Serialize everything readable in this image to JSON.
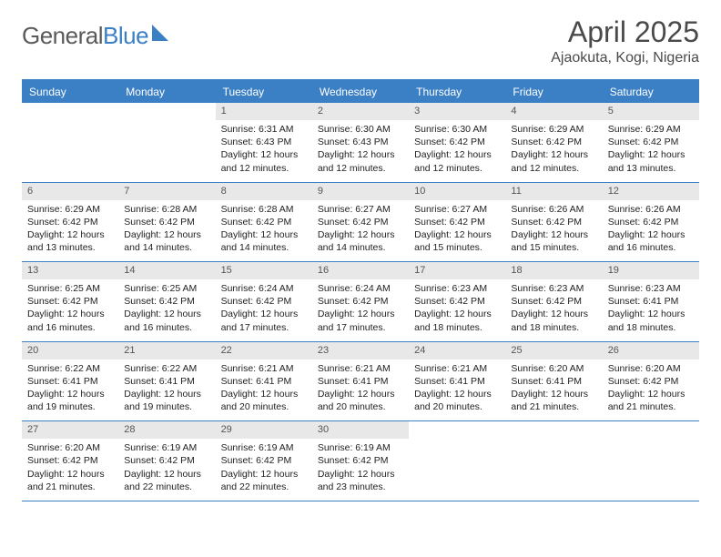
{
  "logo": {
    "word1": "General",
    "word2": "Blue"
  },
  "title": "April 2025",
  "location": "Ajaokuta, Kogi, Nigeria",
  "dow": [
    "Sunday",
    "Monday",
    "Tuesday",
    "Wednesday",
    "Thursday",
    "Friday",
    "Saturday"
  ],
  "colors": {
    "accent": "#3b7fc4",
    "daynum_bg": "#e8e8e8",
    "text": "#222222",
    "header_text": "#4a4a4a",
    "logo_gray": "#5a5a5a"
  },
  "weeks": [
    [
      null,
      null,
      {
        "n": "1",
        "sunrise": "Sunrise: 6:31 AM",
        "sunset": "Sunset: 6:43 PM",
        "daylight": "Daylight: 12 hours and 12 minutes."
      },
      {
        "n": "2",
        "sunrise": "Sunrise: 6:30 AM",
        "sunset": "Sunset: 6:43 PM",
        "daylight": "Daylight: 12 hours and 12 minutes."
      },
      {
        "n": "3",
        "sunrise": "Sunrise: 6:30 AM",
        "sunset": "Sunset: 6:42 PM",
        "daylight": "Daylight: 12 hours and 12 minutes."
      },
      {
        "n": "4",
        "sunrise": "Sunrise: 6:29 AM",
        "sunset": "Sunset: 6:42 PM",
        "daylight": "Daylight: 12 hours and 12 minutes."
      },
      {
        "n": "5",
        "sunrise": "Sunrise: 6:29 AM",
        "sunset": "Sunset: 6:42 PM",
        "daylight": "Daylight: 12 hours and 13 minutes."
      }
    ],
    [
      {
        "n": "6",
        "sunrise": "Sunrise: 6:29 AM",
        "sunset": "Sunset: 6:42 PM",
        "daylight": "Daylight: 12 hours and 13 minutes."
      },
      {
        "n": "7",
        "sunrise": "Sunrise: 6:28 AM",
        "sunset": "Sunset: 6:42 PM",
        "daylight": "Daylight: 12 hours and 14 minutes."
      },
      {
        "n": "8",
        "sunrise": "Sunrise: 6:28 AM",
        "sunset": "Sunset: 6:42 PM",
        "daylight": "Daylight: 12 hours and 14 minutes."
      },
      {
        "n": "9",
        "sunrise": "Sunrise: 6:27 AM",
        "sunset": "Sunset: 6:42 PM",
        "daylight": "Daylight: 12 hours and 14 minutes."
      },
      {
        "n": "10",
        "sunrise": "Sunrise: 6:27 AM",
        "sunset": "Sunset: 6:42 PM",
        "daylight": "Daylight: 12 hours and 15 minutes."
      },
      {
        "n": "11",
        "sunrise": "Sunrise: 6:26 AM",
        "sunset": "Sunset: 6:42 PM",
        "daylight": "Daylight: 12 hours and 15 minutes."
      },
      {
        "n": "12",
        "sunrise": "Sunrise: 6:26 AM",
        "sunset": "Sunset: 6:42 PM",
        "daylight": "Daylight: 12 hours and 16 minutes."
      }
    ],
    [
      {
        "n": "13",
        "sunrise": "Sunrise: 6:25 AM",
        "sunset": "Sunset: 6:42 PM",
        "daylight": "Daylight: 12 hours and 16 minutes."
      },
      {
        "n": "14",
        "sunrise": "Sunrise: 6:25 AM",
        "sunset": "Sunset: 6:42 PM",
        "daylight": "Daylight: 12 hours and 16 minutes."
      },
      {
        "n": "15",
        "sunrise": "Sunrise: 6:24 AM",
        "sunset": "Sunset: 6:42 PM",
        "daylight": "Daylight: 12 hours and 17 minutes."
      },
      {
        "n": "16",
        "sunrise": "Sunrise: 6:24 AM",
        "sunset": "Sunset: 6:42 PM",
        "daylight": "Daylight: 12 hours and 17 minutes."
      },
      {
        "n": "17",
        "sunrise": "Sunrise: 6:23 AM",
        "sunset": "Sunset: 6:42 PM",
        "daylight": "Daylight: 12 hours and 18 minutes."
      },
      {
        "n": "18",
        "sunrise": "Sunrise: 6:23 AM",
        "sunset": "Sunset: 6:42 PM",
        "daylight": "Daylight: 12 hours and 18 minutes."
      },
      {
        "n": "19",
        "sunrise": "Sunrise: 6:23 AM",
        "sunset": "Sunset: 6:41 PM",
        "daylight": "Daylight: 12 hours and 18 minutes."
      }
    ],
    [
      {
        "n": "20",
        "sunrise": "Sunrise: 6:22 AM",
        "sunset": "Sunset: 6:41 PM",
        "daylight": "Daylight: 12 hours and 19 minutes."
      },
      {
        "n": "21",
        "sunrise": "Sunrise: 6:22 AM",
        "sunset": "Sunset: 6:41 PM",
        "daylight": "Daylight: 12 hours and 19 minutes."
      },
      {
        "n": "22",
        "sunrise": "Sunrise: 6:21 AM",
        "sunset": "Sunset: 6:41 PM",
        "daylight": "Daylight: 12 hours and 20 minutes."
      },
      {
        "n": "23",
        "sunrise": "Sunrise: 6:21 AM",
        "sunset": "Sunset: 6:41 PM",
        "daylight": "Daylight: 12 hours and 20 minutes."
      },
      {
        "n": "24",
        "sunrise": "Sunrise: 6:21 AM",
        "sunset": "Sunset: 6:41 PM",
        "daylight": "Daylight: 12 hours and 20 minutes."
      },
      {
        "n": "25",
        "sunrise": "Sunrise: 6:20 AM",
        "sunset": "Sunset: 6:41 PM",
        "daylight": "Daylight: 12 hours and 21 minutes."
      },
      {
        "n": "26",
        "sunrise": "Sunrise: 6:20 AM",
        "sunset": "Sunset: 6:42 PM",
        "daylight": "Daylight: 12 hours and 21 minutes."
      }
    ],
    [
      {
        "n": "27",
        "sunrise": "Sunrise: 6:20 AM",
        "sunset": "Sunset: 6:42 PM",
        "daylight": "Daylight: 12 hours and 21 minutes."
      },
      {
        "n": "28",
        "sunrise": "Sunrise: 6:19 AM",
        "sunset": "Sunset: 6:42 PM",
        "daylight": "Daylight: 12 hours and 22 minutes."
      },
      {
        "n": "29",
        "sunrise": "Sunrise: 6:19 AM",
        "sunset": "Sunset: 6:42 PM",
        "daylight": "Daylight: 12 hours and 22 minutes."
      },
      {
        "n": "30",
        "sunrise": "Sunrise: 6:19 AM",
        "sunset": "Sunset: 6:42 PM",
        "daylight": "Daylight: 12 hours and 23 minutes."
      },
      null,
      null,
      null
    ]
  ]
}
